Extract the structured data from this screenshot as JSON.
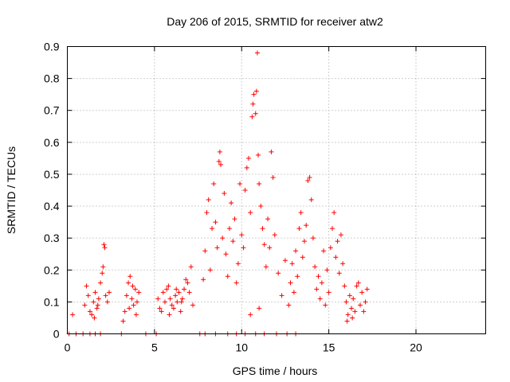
{
  "chart_data": {
    "type": "scatter",
    "title": "Day 206 of 2015, SRMTID for receiver atw2",
    "xlabel": "GPS time / hours",
    "ylabel": "SRMTID / TECUs",
    "xlim": [
      0,
      24
    ],
    "ylim": [
      0,
      0.9
    ],
    "xticks": [
      0,
      5,
      10,
      15,
      20
    ],
    "yticks": [
      0,
      0.1,
      0.2,
      0.3,
      0.4,
      0.5,
      0.6,
      0.7,
      0.8,
      0.9
    ],
    "grid": true,
    "marker": "+",
    "series": [
      {
        "name": "SRMTID",
        "color": "#ff0000",
        "points": [
          [
            0.3,
            0.06
          ],
          [
            0.1,
            0.0
          ],
          [
            0.5,
            0.0
          ],
          [
            0.9,
            0.0
          ],
          [
            1.3,
            0.0
          ],
          [
            1.6,
            0.0
          ],
          [
            1.9,
            0.0
          ],
          [
            1.0,
            0.09
          ],
          [
            1.1,
            0.15
          ],
          [
            1.2,
            0.12
          ],
          [
            1.3,
            0.07
          ],
          [
            1.4,
            0.06
          ],
          [
            1.5,
            0.1
          ],
          [
            1.6,
            0.13
          ],
          [
            1.7,
            0.08
          ],
          [
            1.8,
            0.11
          ],
          [
            1.9,
            0.16
          ],
          [
            2.0,
            0.19
          ],
          [
            2.1,
            0.28
          ],
          [
            2.15,
            0.27
          ],
          [
            2.2,
            0.12
          ],
          [
            2.3,
            0.1
          ],
          [
            2.4,
            0.13
          ],
          [
            1.55,
            0.05
          ],
          [
            1.75,
            0.09
          ],
          [
            2.05,
            0.21
          ],
          [
            3.1,
            0.0
          ],
          [
            3.2,
            0.04
          ],
          [
            3.3,
            0.07
          ],
          [
            3.4,
            0.12
          ],
          [
            3.5,
            0.16
          ],
          [
            3.6,
            0.18
          ],
          [
            3.7,
            0.11
          ],
          [
            3.8,
            0.09
          ],
          [
            3.9,
            0.14
          ],
          [
            4.0,
            0.1
          ],
          [
            4.1,
            0.13
          ],
          [
            3.55,
            0.08
          ],
          [
            3.75,
            0.15
          ],
          [
            3.95,
            0.06
          ],
          [
            4.5,
            0.0
          ],
          [
            5.1,
            0.0
          ],
          [
            5.2,
            0.11
          ],
          [
            5.3,
            0.08
          ],
          [
            5.4,
            0.07
          ],
          [
            5.5,
            0.13
          ],
          [
            5.6,
            0.1
          ],
          [
            5.7,
            0.14
          ],
          [
            5.8,
            0.15
          ],
          [
            5.9,
            0.11
          ],
          [
            6.0,
            0.09
          ],
          [
            6.1,
            0.08
          ],
          [
            6.2,
            0.12
          ],
          [
            6.3,
            0.1
          ],
          [
            6.4,
            0.13
          ],
          [
            6.5,
            0.07
          ],
          [
            6.6,
            0.11
          ],
          [
            6.7,
            0.14
          ],
          [
            6.8,
            0.17
          ],
          [
            6.9,
            0.16
          ],
          [
            7.0,
            0.13
          ],
          [
            7.1,
            0.21
          ],
          [
            7.2,
            0.09
          ],
          [
            6.25,
            0.14
          ],
          [
            5.85,
            0.06
          ],
          [
            6.55,
            0.1
          ],
          [
            7.6,
            0.0
          ],
          [
            7.9,
            0.0
          ],
          [
            8.5,
            0.0
          ],
          [
            9.2,
            0.0
          ],
          [
            9.7,
            0.0
          ],
          [
            7.8,
            0.17
          ],
          [
            7.9,
            0.26
          ],
          [
            8.0,
            0.38
          ],
          [
            8.1,
            0.42
          ],
          [
            8.2,
            0.2
          ],
          [
            8.3,
            0.33
          ],
          [
            8.4,
            0.47
          ],
          [
            8.5,
            0.35
          ],
          [
            8.6,
            0.27
          ],
          [
            8.7,
            0.54
          ],
          [
            8.75,
            0.57
          ],
          [
            8.8,
            0.53
          ],
          [
            8.9,
            0.3
          ],
          [
            9.0,
            0.44
          ],
          [
            9.1,
            0.25
          ],
          [
            9.2,
            0.18
          ],
          [
            9.3,
            0.33
          ],
          [
            9.4,
            0.41
          ],
          [
            9.5,
            0.29
          ],
          [
            9.6,
            0.36
          ],
          [
            9.7,
            0.16
          ],
          [
            9.8,
            0.22
          ],
          [
            9.9,
            0.47
          ],
          [
            10.0,
            0.31
          ],
          [
            10.1,
            0.27
          ],
          [
            10.2,
            0.45
          ],
          [
            10.3,
            0.52
          ],
          [
            10.4,
            0.55
          ],
          [
            10.5,
            0.38
          ],
          [
            10.6,
            0.68
          ],
          [
            10.65,
            0.72
          ],
          [
            10.7,
            0.75
          ],
          [
            10.8,
            0.69
          ],
          [
            10.85,
            0.76
          ],
          [
            10.9,
            0.88
          ],
          [
            10.95,
            0.56
          ],
          [
            11.0,
            0.47
          ],
          [
            11.1,
            0.4
          ],
          [
            11.2,
            0.33
          ],
          [
            11.3,
            0.28
          ],
          [
            11.4,
            0.21
          ],
          [
            11.5,
            0.36
          ],
          [
            11.6,
            0.27
          ],
          [
            11.7,
            0.57
          ],
          [
            11.8,
            0.49
          ],
          [
            11.9,
            0.31
          ],
          [
            10.5,
            0.06
          ],
          [
            11.0,
            0.08
          ],
          [
            10.2,
            0.0
          ],
          [
            10.8,
            0.0
          ],
          [
            11.3,
            0.0
          ],
          [
            12.0,
            0.0
          ],
          [
            12.6,
            0.0
          ],
          [
            13.1,
            0.0
          ],
          [
            12.1,
            0.19
          ],
          [
            12.3,
            0.12
          ],
          [
            12.5,
            0.23
          ],
          [
            12.7,
            0.09
          ],
          [
            12.8,
            0.16
          ],
          [
            12.9,
            0.22
          ],
          [
            13.0,
            0.13
          ],
          [
            13.1,
            0.26
          ],
          [
            13.2,
            0.18
          ],
          [
            13.3,
            0.33
          ],
          [
            13.4,
            0.38
          ],
          [
            13.5,
            0.24
          ],
          [
            13.6,
            0.29
          ],
          [
            13.7,
            0.34
          ],
          [
            13.8,
            0.48
          ],
          [
            13.9,
            0.49
          ],
          [
            14.0,
            0.42
          ],
          [
            14.1,
            0.3
          ],
          [
            14.2,
            0.21
          ],
          [
            14.3,
            0.14
          ],
          [
            14.4,
            0.18
          ],
          [
            14.5,
            0.11
          ],
          [
            14.6,
            0.16
          ],
          [
            14.7,
            0.26
          ],
          [
            14.8,
            0.09
          ],
          [
            14.9,
            0.2
          ],
          [
            15.0,
            0.13
          ],
          [
            15.1,
            0.27
          ],
          [
            15.2,
            0.33
          ],
          [
            15.3,
            0.38
          ],
          [
            15.4,
            0.24
          ],
          [
            15.5,
            0.29
          ],
          [
            15.6,
            0.19
          ],
          [
            15.7,
            0.31
          ],
          [
            15.8,
            0.22
          ],
          [
            15.9,
            0.15
          ],
          [
            16.0,
            0.1
          ],
          [
            16.1,
            0.06
          ],
          [
            16.2,
            0.12
          ],
          [
            16.3,
            0.08
          ],
          [
            16.4,
            0.11
          ],
          [
            16.5,
            0.07
          ],
          [
            16.6,
            0.15
          ],
          [
            16.7,
            0.16
          ],
          [
            16.8,
            0.09
          ],
          [
            16.9,
            0.13
          ],
          [
            17.0,
            0.07
          ],
          [
            17.1,
            0.1
          ],
          [
            17.2,
            0.14
          ],
          [
            16.05,
            0.04
          ],
          [
            16.35,
            0.05
          ]
        ]
      }
    ]
  }
}
